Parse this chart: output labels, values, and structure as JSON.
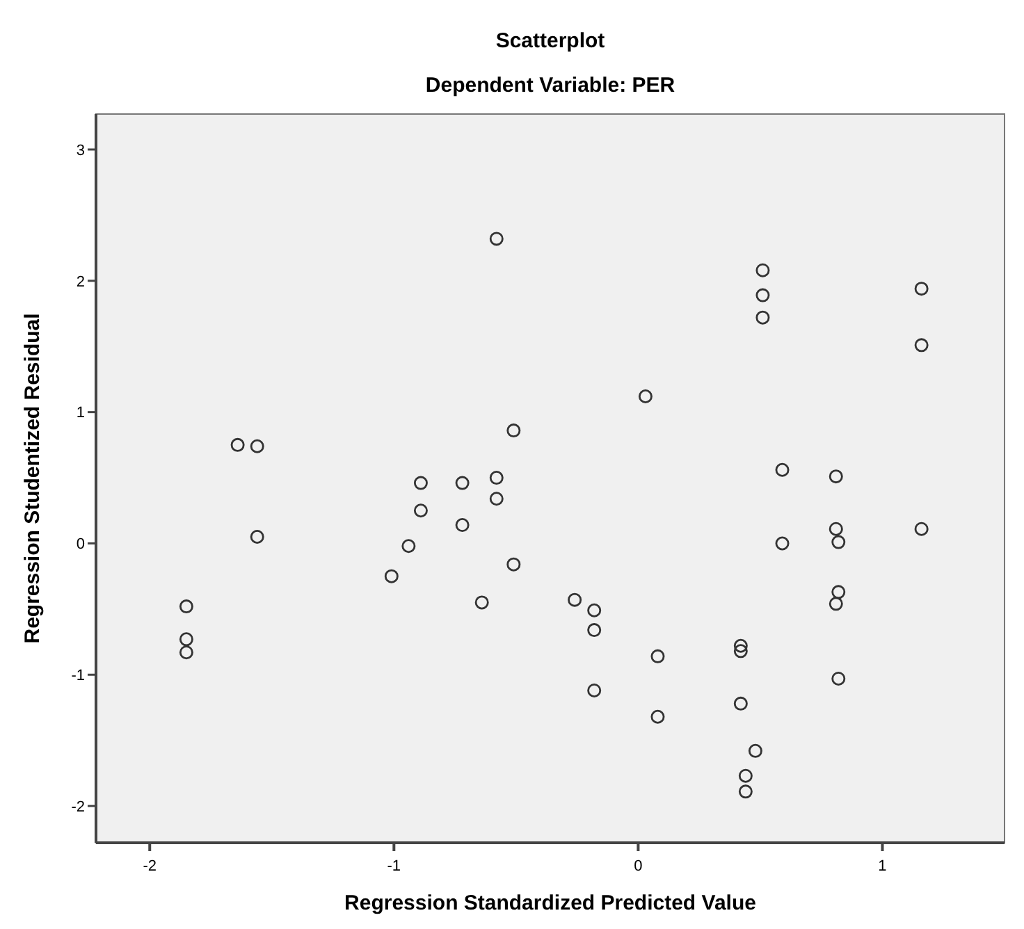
{
  "chart_data": {
    "type": "scatter",
    "title": "Scatterplot",
    "subtitle": "Dependent Variable: PER",
    "xlabel": "Regression Standardized Predicted Value",
    "ylabel": "Regression Studentized Residual",
    "xlim": [
      -2.22,
      1.5
    ],
    "ylim": [
      -2.28,
      3.27
    ],
    "xticks": [
      -2,
      -1,
      0,
      1
    ],
    "yticks": [
      -2,
      -1,
      0,
      1,
      2,
      3
    ],
    "grid": false,
    "marker": "circle",
    "series": [
      {
        "color": "#333333",
        "x": [
          -0.58,
          -1.64,
          -1.56,
          -0.51,
          -0.89,
          -0.72,
          -0.58,
          -0.58,
          -0.89,
          -0.72,
          0.51,
          0.51,
          0.51,
          1.16,
          1.16,
          0.03,
          0.59,
          0.81,
          -1.56,
          -0.94,
          -1.01,
          -0.51,
          -0.64,
          -1.85,
          -1.85,
          -1.85,
          1.16,
          0.59,
          0.81,
          0.82,
          0.82,
          0.81,
          0.82,
          -0.26,
          -0.18,
          -0.18,
          -0.18,
          0.08,
          0.08,
          0.42,
          0.42,
          0.42,
          0.48,
          0.44,
          0.44
        ],
        "values": [
          2.32,
          0.75,
          0.74,
          0.86,
          0.46,
          0.46,
          0.5,
          0.34,
          0.25,
          0.14,
          2.08,
          1.89,
          1.72,
          1.94,
          1.51,
          1.12,
          0.56,
          0.51,
          0.05,
          -0.02,
          -0.25,
          -0.16,
          -0.45,
          -0.48,
          -0.73,
          -0.83,
          0.11,
          0.0,
          0.11,
          0.01,
          -0.37,
          -0.46,
          -1.03,
          -0.43,
          -0.51,
          -0.66,
          -1.12,
          -0.86,
          -1.32,
          -0.78,
          -0.82,
          -1.22,
          -1.58,
          -1.77,
          -1.89
        ]
      }
    ]
  }
}
